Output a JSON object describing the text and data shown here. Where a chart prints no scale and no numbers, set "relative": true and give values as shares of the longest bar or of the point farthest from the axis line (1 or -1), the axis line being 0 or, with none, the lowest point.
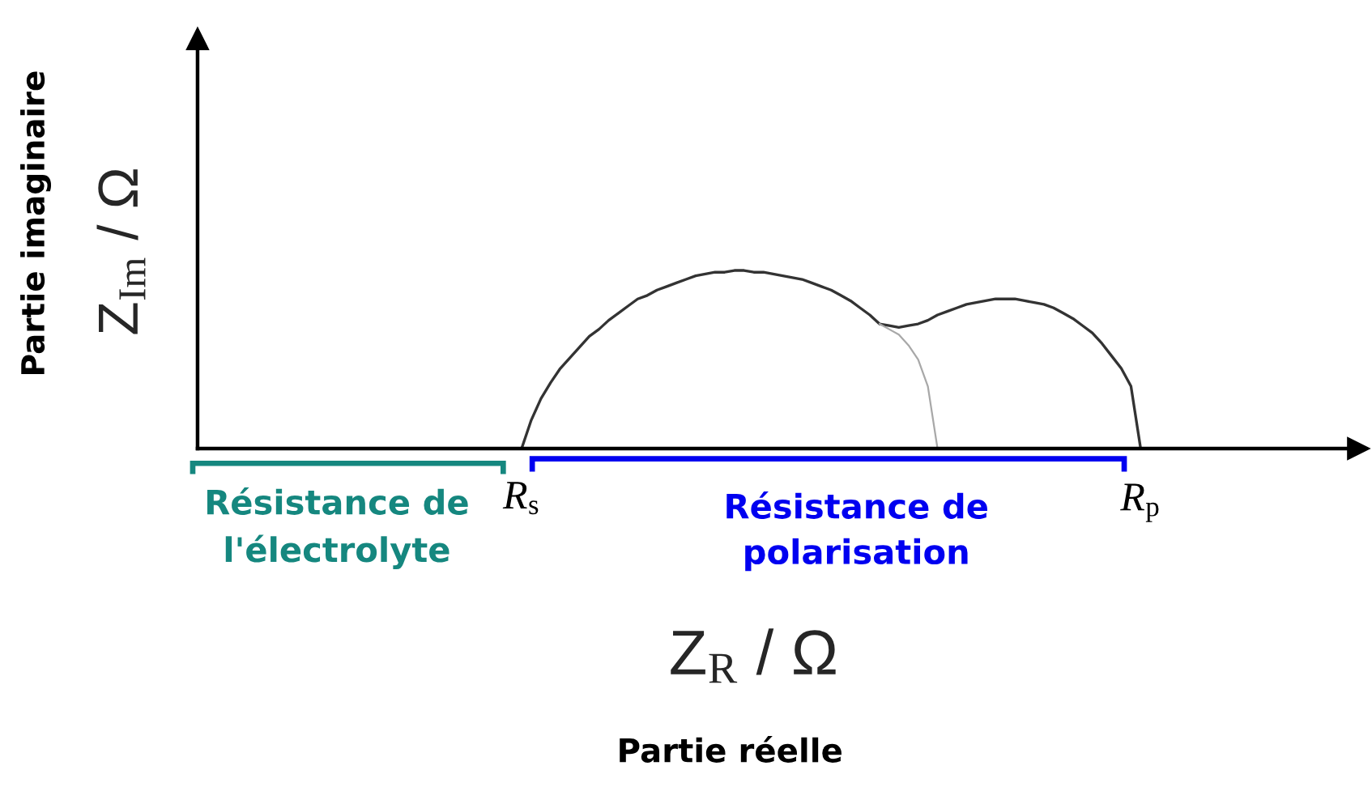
{
  "chart_data": {
    "type": "line",
    "relative": true,
    "line_style": "solid",
    "ylabel": "Z$_{Im}$ / Ω",
    "xlabel": "Z$_{R}$ / Ω",
    "annotations": [
      "Partie imaginaire",
      "Partie réelle",
      "R$_{s}$",
      "R$_{p}$",
      "Résistance de\nl'électrolyte",
      "Résistance de\npolarisation"
    ],
    "categories": [
      null,
      null,
      null,
      null,
      null,
      null,
      null,
      null,
      null,
      null,
      null,
      null,
      null,
      null,
      null,
      null,
      null,
      null,
      null,
      null,
      null,
      null,
      null,
      null,
      null,
      null,
      null,
      null,
      null,
      null,
      null,
      null,
      null,
      null,
      null,
      null,
      null,
      null,
      null,
      null,
      null,
      null,
      null,
      null,
      null,
      null,
      null,
      null,
      null,
      null,
      null,
      null,
      null,
      null,
      null,
      null,
      null,
      null,
      null,
      null,
      null,
      null,
      null,
      null,
      null,
      null,
      null,
      null,
      null,
      null,
      null,
      null,
      null,
      null,
      null,
      null,
      null,
      null,
      null,
      null,
      null,
      null,
      null,
      null,
      null,
      null,
      null,
      null,
      null,
      null,
      null,
      null,
      null,
      null,
      null,
      null,
      null,
      null,
      null,
      null,
      null,
      null,
      null,
      null,
      null,
      null,
      null,
      null,
      null,
      null,
      null,
      null,
      null,
      null,
      null,
      null,
      null,
      null,
      null,
      null
    ],
    "series": [
      {
        "color": "#333333",
        "values": [
          null,
          null,
          null,
          null,
          null,
          null,
          null,
          null,
          null,
          null,
          null,
          null,
          null,
          null,
          null,
          null,
          null,
          null,
          null,
          null,
          null,
          null,
          null,
          null,
          null,
          null,
          null,
          null,
          null,
          null,
          null,
          null,
          null,
          0,
          0.16,
          0.28,
          0.37,
          0.45,
          0.51,
          0.57,
          0.63,
          0.67,
          0.72,
          0.76,
          0.8,
          0.84,
          0.86,
          0.89,
          0.91,
          0.93,
          0.95,
          0.97,
          0.98,
          0.99,
          0.99,
          1,
          1,
          0.99,
          0.99,
          0.98,
          0.97,
          0.96,
          0.95,
          0.93,
          0.91,
          0.89,
          0.86,
          0.83,
          0.79,
          0.75,
          0.7,
          0.69,
          0.68,
          0.69,
          0.7,
          0.72,
          0.75,
          0.77,
          0.79,
          0.81,
          0.82,
          0.83,
          0.84,
          0.84,
          0.84,
          0.83,
          0.82,
          0.81,
          0.79,
          0.76,
          0.73,
          0.69,
          0.65,
          0.59,
          0.52,
          0.45,
          0.35,
          0,
          null,
          null,
          null,
          null,
          null,
          null,
          null,
          null,
          null,
          null,
          null,
          null,
          null,
          null,
          null,
          null,
          null,
          null,
          null,
          null,
          null,
          null
        ]
      },
      {
        "color": "#a8a8a8",
        "values": [
          null,
          null,
          null,
          null,
          null,
          null,
          null,
          null,
          null,
          null,
          null,
          null,
          null,
          null,
          null,
          null,
          null,
          null,
          null,
          null,
          null,
          null,
          null,
          null,
          null,
          null,
          null,
          null,
          null,
          null,
          null,
          null,
          null,
          null,
          null,
          null,
          null,
          null,
          null,
          null,
          null,
          null,
          null,
          null,
          null,
          null,
          null,
          null,
          null,
          null,
          null,
          null,
          null,
          null,
          null,
          null,
          null,
          null,
          null,
          null,
          null,
          null,
          null,
          null,
          null,
          null,
          null,
          null,
          null,
          null,
          0.7,
          0.67,
          0.64,
          0.58,
          0.5,
          0.35,
          0,
          null,
          null,
          null,
          null,
          null,
          null,
          null,
          null,
          null,
          null,
          null,
          null,
          null,
          null,
          null,
          null,
          null,
          null,
          null,
          null,
          null,
          null,
          null,
          null,
          null,
          null,
          null,
          null,
          null,
          null,
          null,
          null,
          null,
          null,
          null,
          null,
          null,
          null,
          null,
          null,
          null,
          null,
          null
        ]
      }
    ]
  }
}
